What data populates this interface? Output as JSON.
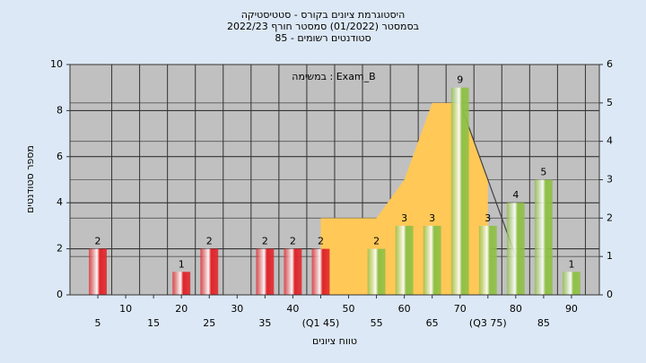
{
  "chart_data": {
    "type": "bar",
    "title": [
      "היסטוגרמת ציונים בקורס - סטטיסטיקה",
      "בסמסטר  (01/2022)  סמסטר חורף 2022/23",
      "סטודנטים רשומים - 85"
    ],
    "annotation": "במשימה : Exam_B",
    "xlabel": "טווח ציונים",
    "ylabel": "מספר סטודנטים",
    "xlim": [
      0,
      95
    ],
    "xticks": [
      5,
      10,
      15,
      20,
      25,
      30,
      35,
      40,
      {
        "value": 45,
        "label": "(Q1 45)"
      },
      50,
      55,
      60,
      65,
      70,
      {
        "value": 75,
        "label": "(Q3 75)"
      },
      80,
      85,
      90
    ],
    "ylim": [
      0,
      10
    ],
    "yticks": [
      0,
      2,
      4,
      6,
      8,
      10
    ],
    "y2lim": [
      0,
      6
    ],
    "y2ticks": [
      0,
      1,
      2,
      3,
      4,
      5,
      6
    ],
    "grid": true,
    "series": [
      {
        "type": "area",
        "axis": "y2",
        "color": "#ffc857",
        "x": [
          45,
          55,
          60,
          65,
          70,
          75
        ],
        "values": [
          2,
          2,
          3,
          5,
          5,
          3
        ]
      },
      {
        "type": "line",
        "axis": "y2",
        "color": "#404040",
        "x": [
          70,
          80
        ],
        "values": [
          5,
          1
        ]
      },
      {
        "type": "bar",
        "color": "#e0252a",
        "x": [
          5,
          20,
          25,
          35,
          40,
          45
        ],
        "values": [
          2,
          1,
          2,
          2,
          2,
          2
        ]
      },
      {
        "type": "bar",
        "color": "#8fc045",
        "x": [
          55,
          60,
          65,
          70,
          75,
          80,
          85,
          90
        ],
        "values": [
          2,
          3,
          3,
          9,
          3,
          4,
          5,
          1
        ]
      }
    ]
  }
}
